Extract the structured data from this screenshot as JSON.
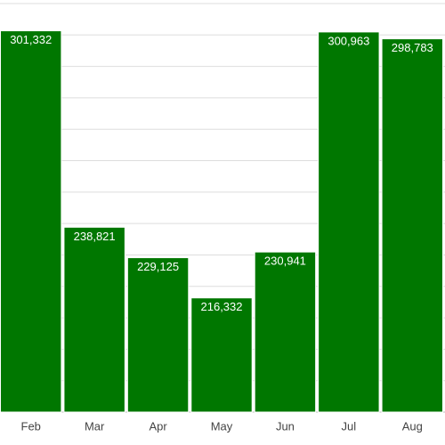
{
  "chart_data": {
    "type": "bar",
    "categories": [
      "Feb",
      "Mar",
      "Apr",
      "May",
      "Jun",
      "Jul",
      "Aug"
    ],
    "values": [
      301332,
      238821,
      229125,
      216332,
      230941,
      300963,
      298783
    ],
    "value_labels": [
      "301,332",
      "238,821",
      "229,125",
      "216,332",
      "230,941",
      "300,963",
      "298,783"
    ],
    "color": "#007700",
    "ylim": [
      180000,
      310000
    ],
    "yticks": [
      180000,
      190000,
      200000,
      210000,
      220000,
      230000,
      240000,
      250000,
      260000,
      270000,
      280000,
      290000,
      300000,
      310000
    ],
    "grid": true
  }
}
